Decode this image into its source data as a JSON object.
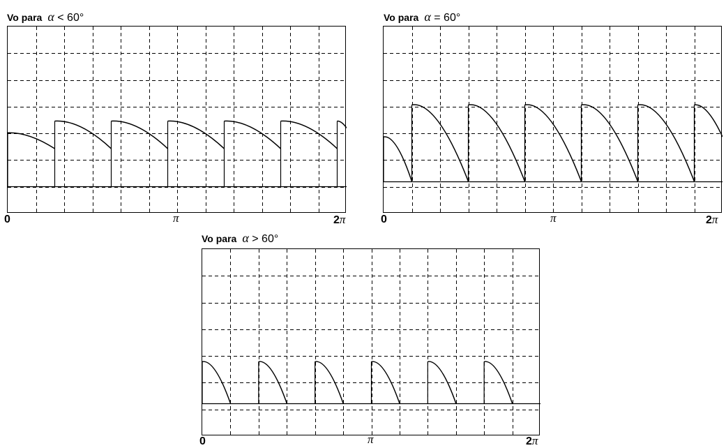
{
  "chart_data": [
    {
      "type": "line",
      "title_label": "Vo para",
      "title_symbol": "α",
      "title_relation": "< 60°",
      "x_ticks": {
        "start": "0",
        "mid": "π",
        "end_num": "2",
        "end_sym": "π"
      },
      "xlim": [
        0,
        360
      ],
      "ylim": [
        0,
        1.5
      ],
      "grid": true,
      "baseline": 0,
      "series": [
        {
          "pulses": [
            {
              "x0": 0,
              "y0": 1.01,
              "x1": 50,
              "y1": 0.71
            },
            {
              "x0": 50,
              "y0": 1.23,
              "x1": 110,
              "y1": 0.71
            },
            {
              "x0": 110,
              "y0": 1.23,
              "x1": 170,
              "y1": 0.71
            },
            {
              "x0": 170,
              "y0": 1.23,
              "x1": 230,
              "y1": 0.71
            },
            {
              "x0": 230,
              "y0": 1.23,
              "x1": 290,
              "y1": 0.71
            },
            {
              "x0": 290,
              "y0": 1.23,
              "x1": 350,
              "y1": 0.71
            },
            {
              "x0": 350,
              "y0": 1.23,
              "x1": 360,
              "y1": 1.1
            }
          ]
        }
      ]
    },
    {
      "type": "line",
      "title_label": "Vo para",
      "title_symbol": "α",
      "title_relation": "= 60°",
      "x_ticks": {
        "start": "0",
        "mid": "π",
        "end_num": "2",
        "end_sym": "π"
      },
      "xlim": [
        0,
        360
      ],
      "ylim": [
        0,
        1.5
      ],
      "grid": true,
      "baseline": 0,
      "series": [
        {
          "pulses": [
            {
              "x0": 0,
              "y0": 0.71,
              "x1": 30,
              "y1": 0.0
            },
            {
              "x0": 30,
              "y0": 1.22,
              "x1": 90,
              "y1": 0.0
            },
            {
              "x0": 90,
              "y0": 1.22,
              "x1": 150,
              "y1": 0.0
            },
            {
              "x0": 150,
              "y0": 1.22,
              "x1": 210,
              "y1": 0.0
            },
            {
              "x0": 210,
              "y0": 1.22,
              "x1": 270,
              "y1": 0.0
            },
            {
              "x0": 270,
              "y0": 1.22,
              "x1": 330,
              "y1": 0.0
            },
            {
              "x0": 330,
              "y0": 1.22,
              "x1": 360,
              "y1": 0.71
            }
          ]
        }
      ]
    },
    {
      "type": "line",
      "title_label": "Vo para",
      "title_symbol": "α",
      "title_relation": "> 60°",
      "x_ticks": {
        "start": "0",
        "mid": "π",
        "end_num": "2",
        "end_sym": "π"
      },
      "xlim": [
        0,
        360
      ],
      "ylim": [
        0,
        1.5
      ],
      "grid": true,
      "baseline": 0,
      "series": [
        {
          "pulses": [
            {
              "x0": 0,
              "y0": 0.65,
              "x1": 30,
              "y1": 0.0
            },
            {
              "x0": 60,
              "y0": 0.65,
              "x1": 90,
              "y1": 0.0
            },
            {
              "x0": 120,
              "y0": 0.65,
              "x1": 150,
              "y1": 0.0
            },
            {
              "x0": 180,
              "y0": 0.65,
              "x1": 210,
              "y1": 0.0
            },
            {
              "x0": 240,
              "y0": 0.65,
              "x1": 270,
              "y1": 0.0
            },
            {
              "x0": 300,
              "y0": 0.65,
              "x1": 330,
              "y1": 0.0
            }
          ]
        }
      ]
    }
  ]
}
